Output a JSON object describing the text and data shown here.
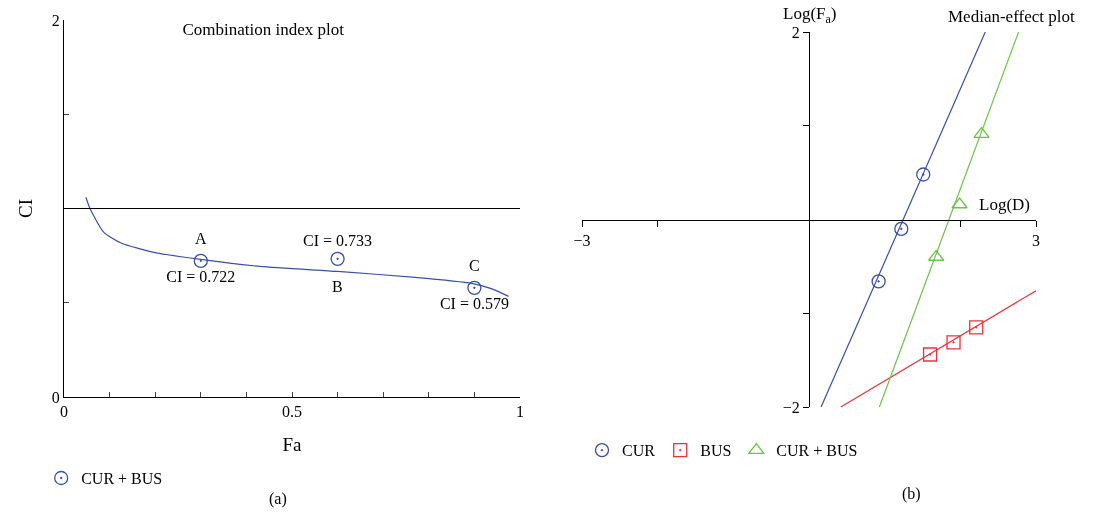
{
  "chart_data": [
    {
      "type": "scatter",
      "title": "Combination index plot",
      "xlabel": "Fa",
      "ylabel": "CI",
      "xlim": [
        0,
        1
      ],
      "ylim": [
        0,
        2
      ],
      "xticks": [
        0,
        {
          "value": 0.1,
          "label": null
        },
        {
          "value": 0.2,
          "label": null
        },
        {
          "value": 0.3,
          "label": null
        },
        {
          "value": 0.4,
          "label": null
        },
        0.5,
        {
          "value": 0.6,
          "label": null
        },
        {
          "value": 0.7,
          "label": null
        },
        {
          "value": 0.8,
          "label": null
        },
        {
          "value": 0.9,
          "label": null
        },
        1
      ],
      "yticks": [
        0,
        {
          "value": 0.5,
          "label": null
        },
        {
          "value": 1,
          "label": null
        },
        {
          "value": 1.5,
          "label": null
        },
        2
      ],
      "grid": false,
      "legend": "bottom left",
      "series": [
        {
          "name": "CUR + BUS",
          "color": "#3b4ea6",
          "marker": "circle",
          "x": [
            0.3,
            0.6,
            0.9
          ],
          "values": [
            0.722,
            0.733,
            0.579
          ],
          "value_labels": [
            "CI = 0.722",
            "CI = 0.733",
            "CI = 0.579"
          ]
        },
        {
          "type": "line",
          "color": "#3b4ea6",
          "marker": "none",
          "x": [
            0.048,
            0.057,
            0.087,
            0.125,
            0.2,
            0.3,
            0.43,
            0.6,
            0.77,
            0.894,
            0.937,
            0.975
          ],
          "values": [
            1.06,
            1.0,
            0.875,
            0.817,
            0.766,
            0.73,
            0.693,
            0.666,
            0.635,
            0.603,
            0.575,
            0.534
          ]
        }
      ],
      "ref_lines": [
        {
          "axis": "y",
          "value": 1,
          "color": "#000000"
        }
      ],
      "annotations": [
        {
          "text": "A",
          "x": 0.3,
          "y": 0.722
        },
        {
          "text": "B",
          "x": 0.6,
          "y": 0.733
        },
        {
          "text": "C",
          "x": 0.9,
          "y": 0.579
        },
        "(a)"
      ]
    },
    {
      "type": "scatter",
      "title": "Median-effect plot",
      "xlabel": "Log(D)",
      "ylabel": "Log(F$_{a}$)",
      "xlim": [
        -3,
        3
      ],
      "ylim": [
        -2,
        2
      ],
      "xticks": [
        {
          "value": -3,
          "label": "−3"
        },
        {
          "value": -2,
          "label": null
        },
        {
          "value": 2,
          "label": null
        },
        {
          "value": 3,
          "label": "3"
        }
      ],
      "yticks": [
        {
          "value": -2,
          "label": "−2"
        },
        {
          "value": -1,
          "label": null
        },
        {
          "value": 1,
          "label": null
        },
        {
          "value": 2,
          "label": "2"
        }
      ],
      "grid": false,
      "legend": "bottom",
      "series": [
        {
          "name": "CUR",
          "color": "#3b4ea6",
          "marker": "circle",
          "x": [
            0.92,
            1.22,
            1.51
          ],
          "values": [
            -0.66,
            -0.1,
            0.48
          ]
        },
        {
          "name": "BUS",
          "color": "#e8333a",
          "marker": "square",
          "x": [
            1.6,
            1.91,
            2.21
          ],
          "values": [
            -1.44,
            -1.31,
            -1.15
          ]
        },
        {
          "name": "CUR + BUS",
          "color": "#6cc24a",
          "marker": "triangle",
          "x": [
            1.68,
            1.99,
            2.28
          ],
          "values": [
            -0.4,
            0.16,
            0.91
          ]
        },
        {
          "type": "line",
          "color": "#3b4ea6",
          "marker": "none",
          "x": [
            0.16,
            2.33
          ],
          "values": [
            -2,
            2
          ]
        },
        {
          "type": "line",
          "color": "#e8333a",
          "marker": "none",
          "x": [
            0.42,
            3.0
          ],
          "values": [
            -2,
            -0.76
          ]
        },
        {
          "type": "line",
          "color": "#6cc24a",
          "marker": "none",
          "x": [
            0.93,
            2.77
          ],
          "values": [
            -2,
            2
          ]
        }
      ],
      "annotations": [
        "(b)"
      ]
    }
  ]
}
